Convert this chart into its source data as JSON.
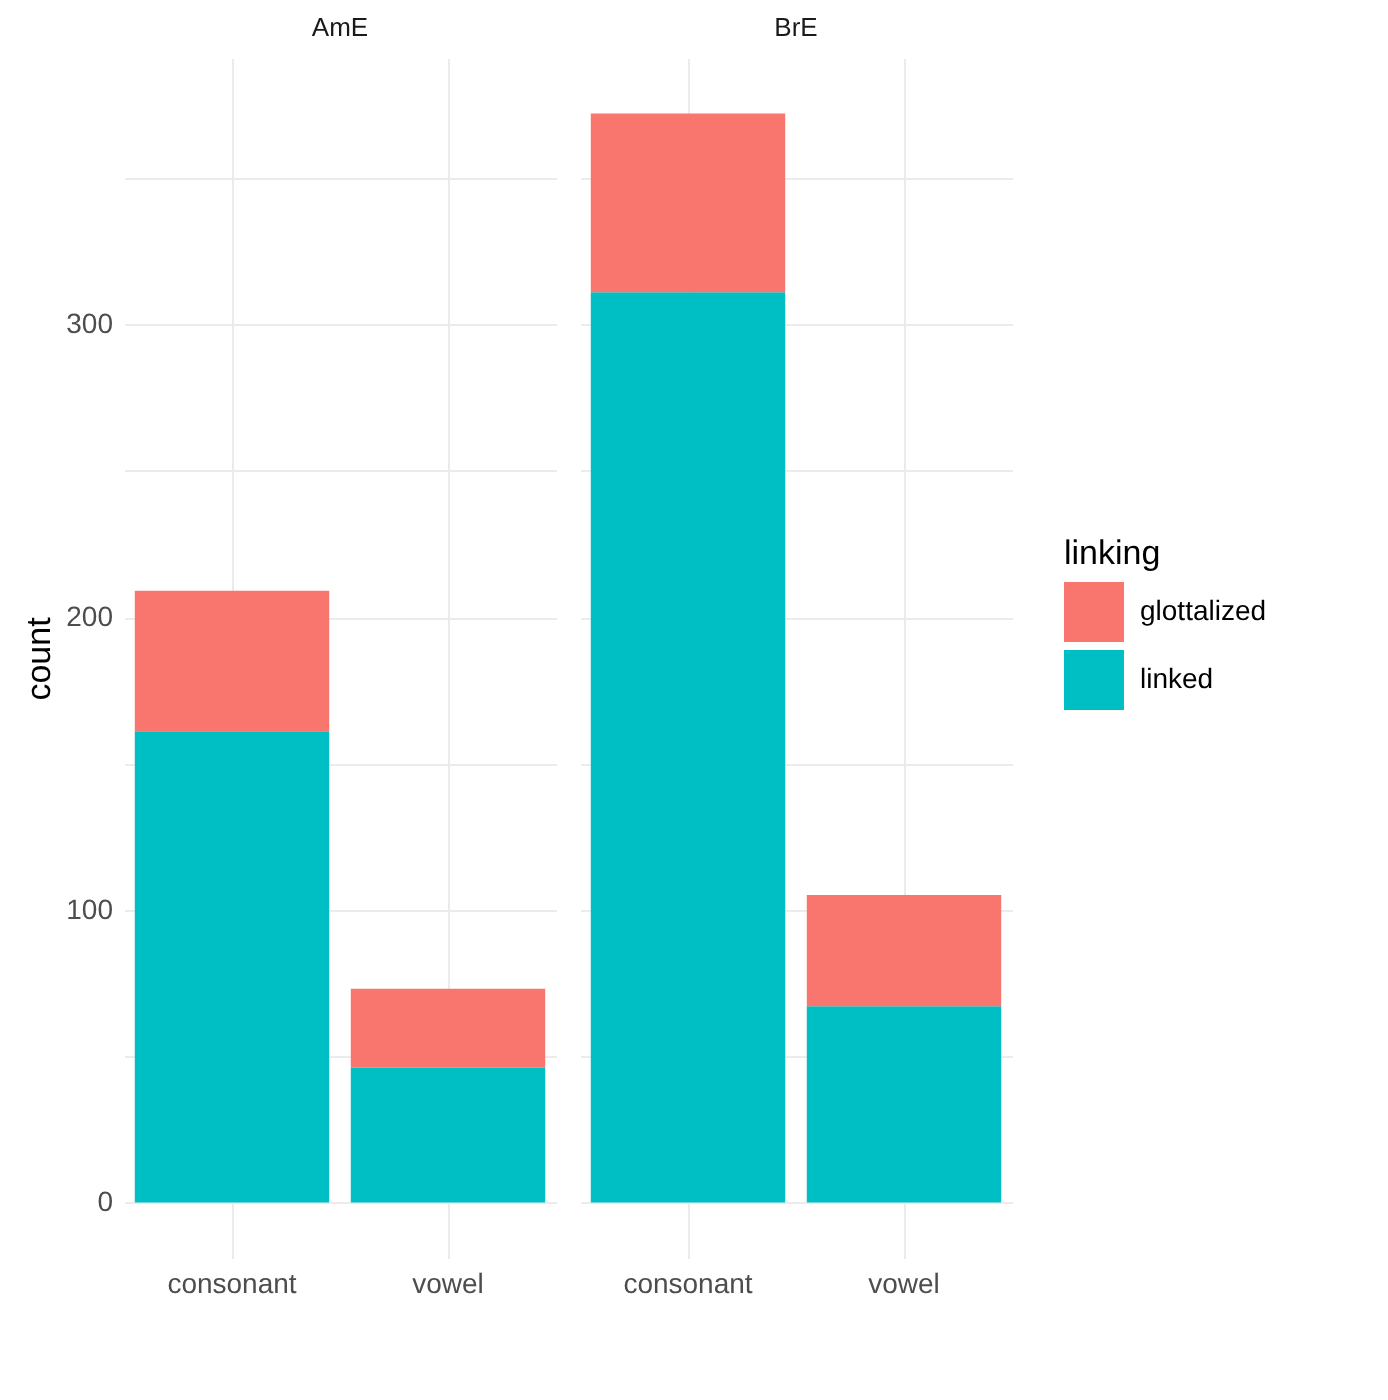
{
  "chart_data": [
    {
      "type": "bar",
      "title": "AmE",
      "ylabel": "count",
      "categories": [
        "consonant",
        "vowel"
      ],
      "stacked": true,
      "series": [
        {
          "color": "#00bfc4",
          "values": [
            161,
            46
          ]
        },
        {
          "color": "#f8766d",
          "values": [
            48,
            27
          ]
        }
      ],
      "ylim": [
        -19,
        391
      ],
      "yticks": [
        0,
        {
          "value": 50,
          "label": null
        },
        100,
        {
          "value": 150,
          "label": null
        },
        200,
        {
          "value": 250,
          "label": null
        },
        300,
        {
          "value": 350,
          "label": null
        }
      ],
      "grid": true,
      "legend": false
    },
    {
      "type": "bar",
      "title": "BrE",
      "legend_title": "linking",
      "categories": [
        "consonant",
        "vowel"
      ],
      "stacked": true,
      "series": [
        {
          "name": "linked",
          "color": "#00bfc4",
          "values": [
            311,
            67
          ]
        },
        {
          "name": "glottalized",
          "color": "#f8766d",
          "values": [
            61,
            38
          ]
        }
      ],
      "ylim": [
        -19,
        391
      ],
      "yticks": [
        0,
        {
          "value": 50,
          "label": null
        },
        100,
        {
          "value": 150,
          "label": null
        },
        200,
        {
          "value": 250,
          "label": null
        },
        300,
        {
          "value": 350,
          "label": null
        }
      ],
      "grid": true,
      "legend": "right",
      "tick_labels": "x"
    }
  ]
}
